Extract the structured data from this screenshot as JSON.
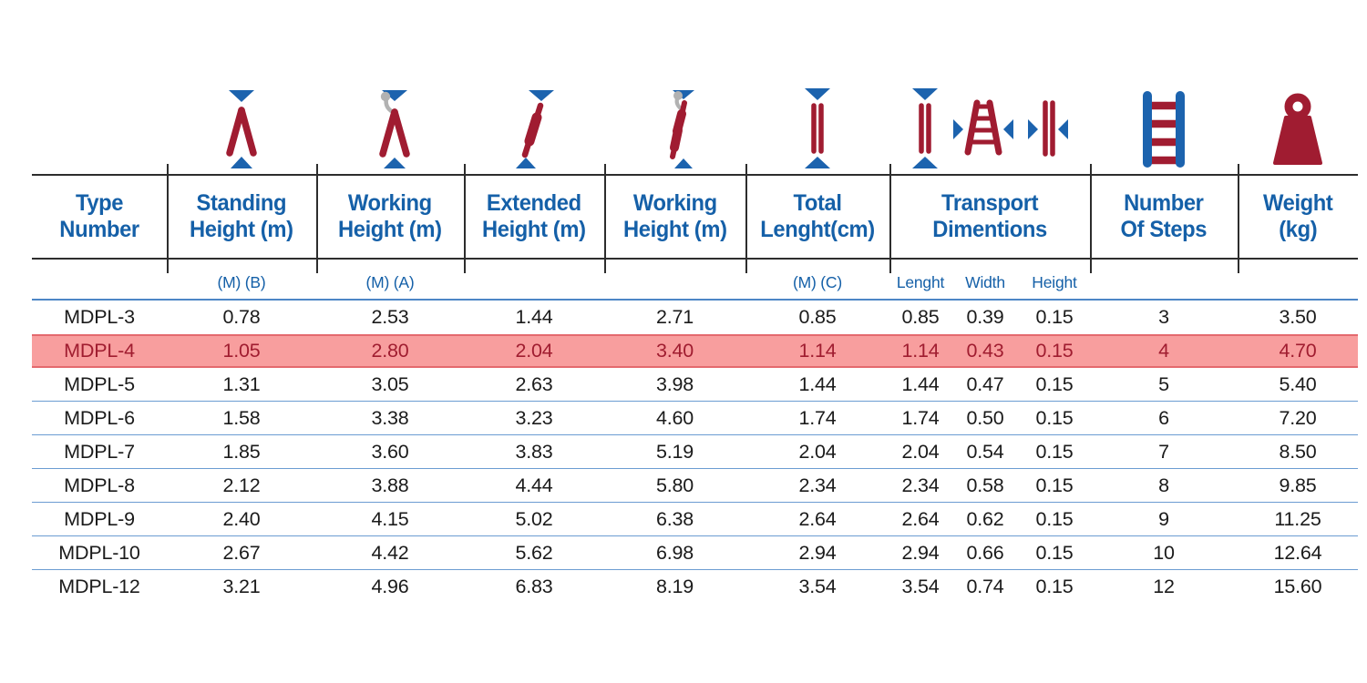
{
  "page": {
    "background": "#ffffff"
  },
  "colors": {
    "header_blue": "#1560a8",
    "icon_red": "#a01c31",
    "icon_blue": "#1c63ae",
    "icon_gray": "#b2b2b2",
    "black_line": "#2d2d2d",
    "row_line_blue": "#6b9cd2",
    "subheader_line_blue": "#4d86c6",
    "highlight_bg": "#f89e9e",
    "highlight_border": "#e4696e",
    "highlight_text": "#a01d30",
    "data_text": "#1b1b1b"
  },
  "table": {
    "header": [
      {
        "label": "Type\nNumber",
        "icon": ""
      },
      {
        "label": "Standing\nHeight (m)",
        "icon": "a-frame-standing-height-icon"
      },
      {
        "label": "Working\nHeight (m)",
        "icon": "a-frame-working-height-icon"
      },
      {
        "label": "Extended\nHeight (m)",
        "icon": "extended-ladder-height-icon"
      },
      {
        "label": "Working\nHeight (m)",
        "icon": "extended-ladder-working-height-icon"
      },
      {
        "label": "Total\nLenght(cm)",
        "icon": "folded-ladder-length-icon"
      },
      {
        "label": "Transport\nDimentions",
        "icons": [
          "transport-length-icon",
          "transport-width-icon",
          "transport-height-icon"
        ]
      },
      {
        "label": "Number\nOf Steps",
        "icon": "ladder-steps-icon"
      },
      {
        "label": "Weight\n(kg)",
        "icon": "weight-icon"
      }
    ],
    "subheader": [
      "",
      "(M) (B)",
      "(M) (A)",
      "",
      "",
      "(M) (C)",
      "Lenght",
      "Width",
      "Height",
      "",
      ""
    ],
    "rows": [
      {
        "cells": [
          "MDPL-3",
          "0.78",
          "2.53",
          "1.44",
          "2.71",
          "0.85",
          "0.85",
          "0.39",
          "0.15",
          "3",
          "3.50"
        ]
      },
      {
        "cells": [
          "MDPL-4",
          "1.05",
          "2.80",
          "2.04",
          "3.40",
          "1.14",
          "1.14",
          "0.43",
          "0.15",
          "4",
          "4.70"
        ]
      },
      {
        "cells": [
          "MDPL-5",
          "1.31",
          "3.05",
          "2.63",
          "3.98",
          "1.44",
          "1.44",
          "0.47",
          "0.15",
          "5",
          "5.40"
        ]
      },
      {
        "cells": [
          "MDPL-6",
          "1.58",
          "3.38",
          "3.23",
          "4.60",
          "1.74",
          "1.74",
          "0.50",
          "0.15",
          "6",
          "7.20"
        ]
      },
      {
        "cells": [
          "MDPL-7",
          "1.85",
          "3.60",
          "3.83",
          "5.19",
          "2.04",
          "2.04",
          "0.54",
          "0.15",
          "7",
          "8.50"
        ]
      },
      {
        "cells": [
          "MDPL-8",
          "2.12",
          "3.88",
          "4.44",
          "5.80",
          "2.34",
          "2.34",
          "0.58",
          "0.15",
          "8",
          "9.85"
        ]
      },
      {
        "cells": [
          "MDPL-9",
          "2.40",
          "4.15",
          "5.02",
          "6.38",
          "2.64",
          "2.64",
          "0.62",
          "0.15",
          "9",
          "11.25"
        ]
      },
      {
        "cells": [
          "MDPL-10",
          "2.67",
          "4.42",
          "5.62",
          "6.98",
          "2.94",
          "2.94",
          "0.66",
          "0.15",
          "10",
          "12.64"
        ]
      },
      {
        "cells": [
          "MDPL-12",
          "3.21",
          "4.96",
          "6.83",
          "8.19",
          "3.54",
          "3.54",
          "0.74",
          "0.15",
          "12",
          "15.60"
        ]
      }
    ],
    "highlighted_row_index": 1
  }
}
